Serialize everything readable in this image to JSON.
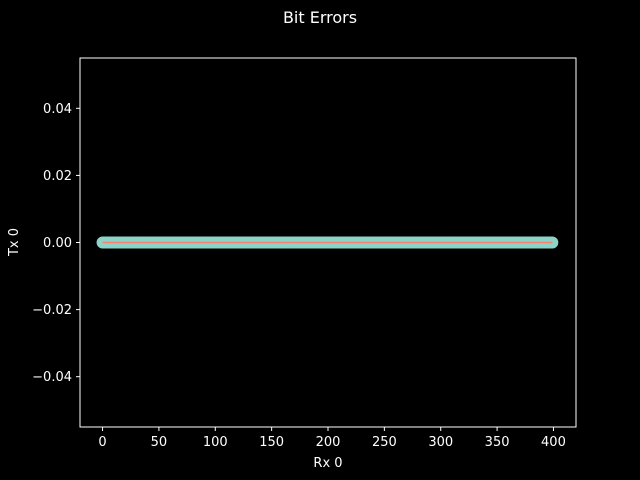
{
  "chart_data": {
    "type": "line",
    "title": "Bit Errors",
    "xlabel": "Rx 0",
    "ylabel": "Tx 0",
    "xlim": [
      -20,
      420
    ],
    "ylim": [
      -0.055,
      0.055
    ],
    "x_ticks": [
      0,
      50,
      100,
      150,
      200,
      250,
      300,
      350,
      400
    ],
    "x_tick_labels": [
      "0",
      "50",
      "100",
      "150",
      "200",
      "250",
      "300",
      "350",
      "400"
    ],
    "y_ticks": [
      -0.04,
      -0.02,
      0.0,
      0.02,
      0.04
    ],
    "y_tick_labels": [
      "−0.04",
      "−0.02",
      "0.00",
      "0.02",
      "0.04"
    ],
    "grid": false,
    "series": [
      {
        "x_start": 0,
        "x_end": 399,
        "x_step": 1,
        "y_constant": 0.0,
        "marker": "circle",
        "marker_color": "#8dd3c7",
        "line_color": "#fa8072"
      }
    ]
  },
  "colors": {
    "background": "#000000",
    "axes": "#ffffff",
    "text": "#ffffff"
  }
}
